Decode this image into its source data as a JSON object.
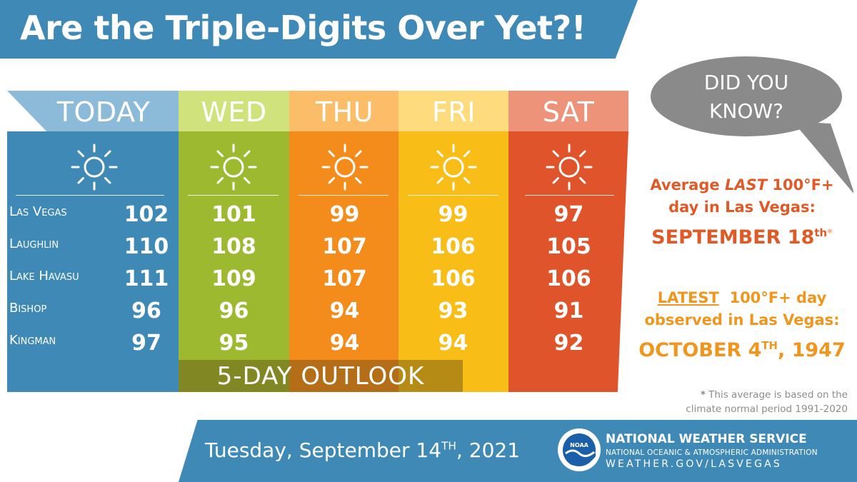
{
  "header": {
    "title": "Are the Triple-Digits Over Yet?!"
  },
  "colors": {
    "header_blue": "#3f89b7",
    "today_head": "#8cbbd9",
    "today_body": "#3f89b7",
    "wed_head": "#cfe27c",
    "wed_body": "#9db92f",
    "thu_head": "#fbbd67",
    "thu_body": "#f48c1c",
    "fri_head": "#fedc7e",
    "fri_body": "#f9bd18",
    "sat_head": "#ec937a",
    "sat_body": "#e0542b",
    "fact_red": "#e05a28",
    "fact_orange": "#f0961e",
    "bubble_gray": "#8a8a8a"
  },
  "forecast": {
    "days": [
      "TODAY",
      "WED",
      "THU",
      "FRI",
      "SAT"
    ],
    "icon": "sun-icon",
    "cities": [
      {
        "name": "Las Vegas",
        "temps": [
          "102",
          "101",
          "99",
          "99",
          "97"
        ]
      },
      {
        "name": "Laughlin",
        "temps": [
          "110",
          "108",
          "107",
          "106",
          "105"
        ]
      },
      {
        "name": "Lake Havasu",
        "temps": [
          "111",
          "109",
          "107",
          "106",
          "106"
        ]
      },
      {
        "name": "Bishop",
        "temps": [
          "96",
          "96",
          "94",
          "93",
          "91"
        ]
      },
      {
        "name": "Kingman",
        "temps": [
          "97",
          "95",
          "94",
          "94",
          "92"
        ]
      }
    ],
    "outlook_label": "5-DAY OUTLOOK"
  },
  "did_you_know": {
    "line1": "DID YOU",
    "line2": "KNOW?"
  },
  "fact1": {
    "prefix": "Average",
    "emph": "LAST",
    "suffix": "100°F+",
    "line2": "day in Las Vegas:",
    "date": "SEPTEMBER 18",
    "date_sup": "th",
    "asterisk": "*"
  },
  "fact2": {
    "emph": "LATEST",
    "suffix": "100°F+ day",
    "line2": "observed in Las Vegas:",
    "date_main": "OCTOBER 4",
    "date_sup": "TH",
    "year": ", 1947"
  },
  "footnote": {
    "star": "*",
    "line1": "This average is based on the",
    "line2": "climate normal period 1991-2020"
  },
  "footer": {
    "date_main": "Tuesday, September 14",
    "date_sup": "TH",
    "year": ", 2021",
    "logo_text": "NOAA",
    "agency": "NATIONAL WEATHER SERVICE",
    "parent": "NATIONAL OCEANIC & ATMOSPHERIC ADMINISTRATION",
    "url": "WEATHER.GOV/LASVEGAS"
  }
}
